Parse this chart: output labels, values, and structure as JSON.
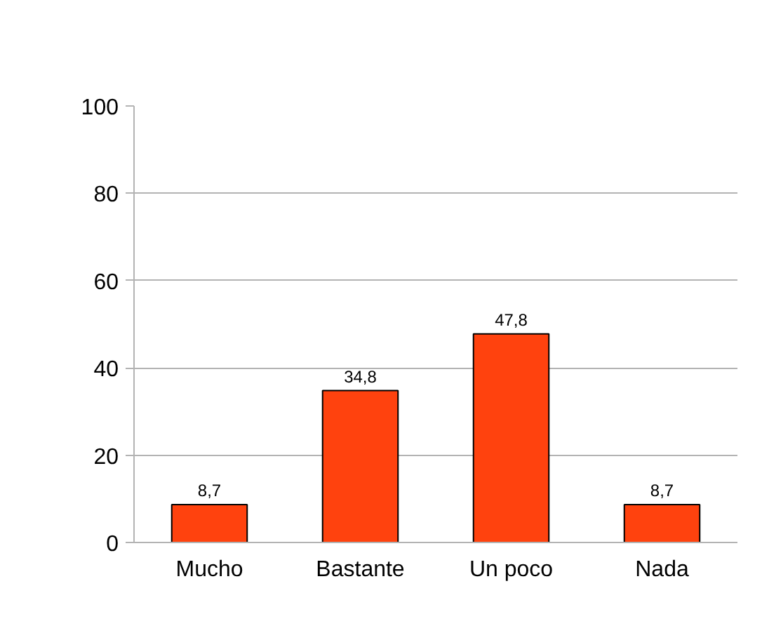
{
  "chart_data": {
    "type": "bar",
    "categories": [
      "Mucho",
      "Bastante",
      "Un poco",
      "Nada"
    ],
    "values": [
      8.7,
      34.8,
      47.8,
      8.7
    ],
    "value_labels": [
      "8,7",
      "34,8",
      "47,8",
      "8,7"
    ],
    "color": "#ff420e",
    "ylim": [
      0,
      100
    ],
    "yticks": [
      0,
      20,
      40,
      60,
      80,
      100
    ],
    "grid": "y"
  }
}
